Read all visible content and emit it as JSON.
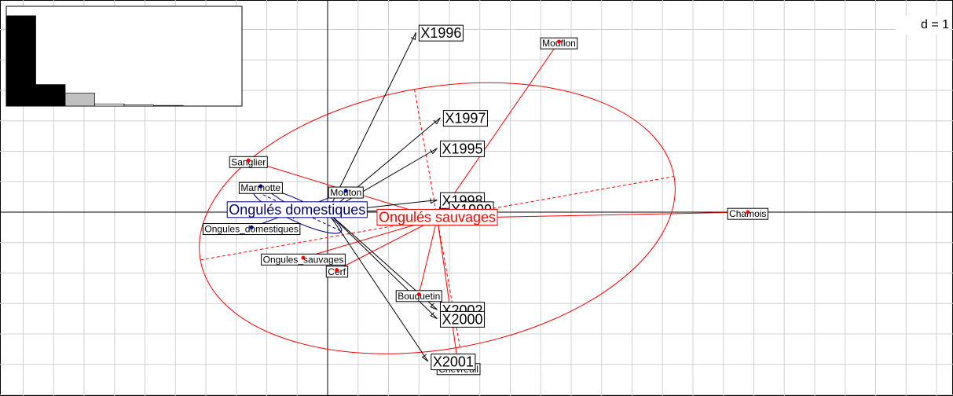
{
  "chart_data": {
    "type": "biplot",
    "grid_label": "d = 1",
    "grid": true,
    "arrows": {
      "color": "#000000",
      "names": [
        "X1996",
        "X1997",
        "X1995",
        "X1998",
        "X1999",
        "X2002",
        "X2000",
        "X2001"
      ],
      "x": [
        2.9,
        3.7,
        3.6,
        3.6,
        3.9,
        3.6,
        3.6,
        3.3
      ],
      "y": [
        5.9,
        3.1,
        2.1,
        0.4,
        0.1,
        -3.2,
        -3.5,
        -4.9
      ]
    },
    "classes": [
      {
        "name": "Ongulés sauvages",
        "color": "#ff0000",
        "x": 3.6,
        "y": -0.2,
        "ellipse_axes": [
          7.9,
          4.3
        ],
        "ellipse_angle": -10,
        "points": {
          "names": [
            "Mouflon",
            "Chamois",
            "Chevreuil",
            "Bouquetin",
            "Cerf",
            "Sanglier",
            "Ongules_sauvages"
          ],
          "x": [
            7.6,
            13.8,
            4.3,
            3.0,
            0.3,
            -2.6,
            -0.8
          ],
          "y": [
            5.6,
            0.0,
            -5.1,
            -2.7,
            -1.9,
            1.7,
            -1.5
          ]
        }
      },
      {
        "name": "Ongulés domestiques",
        "color": "#00007f",
        "x": -1.0,
        "y": 0.05,
        "ellipse_axes": [
          1.6,
          0.35
        ],
        "ellipse_angle": 25,
        "points": {
          "names": [
            "Mouton",
            "Ongules_domestiques",
            "Marmotte"
          ],
          "x": [
            0.6,
            -2.5,
            -2.2
          ],
          "y": [
            0.7,
            -0.5,
            0.85
          ]
        }
      }
    ],
    "eigenvalues": [
      4.2,
      1.0,
      0.6,
      0.1,
      0.05,
      0.03
    ]
  }
}
